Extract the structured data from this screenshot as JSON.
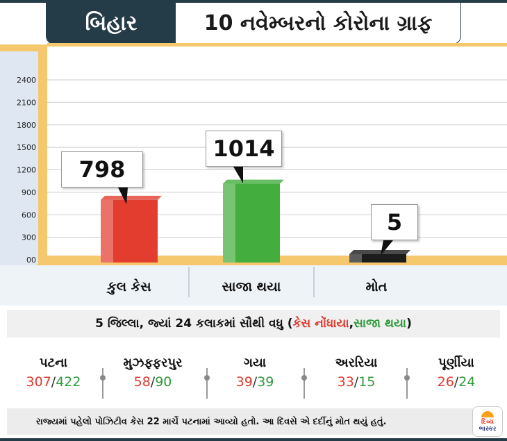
{
  "header": {
    "state": "બિહાર",
    "title": "10 નવેમ્બરનો કોરોના ગ્રાફ"
  },
  "chart_data": {
    "type": "bar",
    "categories": [
      "કુલ કેસ",
      "સાજા થયા",
      "મોત"
    ],
    "values": [
      798,
      1014,
      5
    ],
    "value_labels": [
      "798",
      "1014",
      "5"
    ],
    "yticks": [
      "00",
      "300",
      "600",
      "900",
      "1200",
      "1500",
      "1800",
      "2100",
      "2400"
    ],
    "ytick_values": [
      0,
      300,
      600,
      900,
      1200,
      1500,
      1800,
      2100,
      2400
    ],
    "ylim": [
      0,
      2700
    ],
    "colors": [
      "#e23d2e",
      "#43ad3e",
      "#1c1c1c"
    ],
    "grid": true
  },
  "subheading": {
    "prefix": "5 જિલ્લા, જ્યાં 24 કલાકમાં સૌથી વધુ (",
    "cases": "કેસ નોંધાયા",
    "comma": ", ",
    "recovered": "સાજા થયા",
    "suffix": ")"
  },
  "districts": [
    {
      "name": "પટના",
      "cases": "307",
      "recovered": "422"
    },
    {
      "name": "મુઝફ્ફરપુર",
      "cases": "58",
      "recovered": "90"
    },
    {
      "name": "ગયા",
      "cases": "39",
      "recovered": "39"
    },
    {
      "name": "અરરિયા",
      "cases": "33",
      "recovered": "15"
    },
    {
      "name": "પૂર્ણીયા",
      "cases": "26",
      "recovered": "24"
    }
  ],
  "footer": {
    "text": "રાજ્યમાં પહેલો પોઝિટીવ કેસ 22 માર્ચે પટનામાં આવ્યો હતો. આ દિવસે એ દર્દીનું મોત થયું હતું."
  },
  "logo": {
    "line1": "દિવ્ય",
    "line2": "ભાસ્કર"
  },
  "colors": {
    "primary": "#243c47",
    "red": "#e13a2e",
    "green": "#2f9a3a",
    "axis_frame": "#f6c86e"
  }
}
